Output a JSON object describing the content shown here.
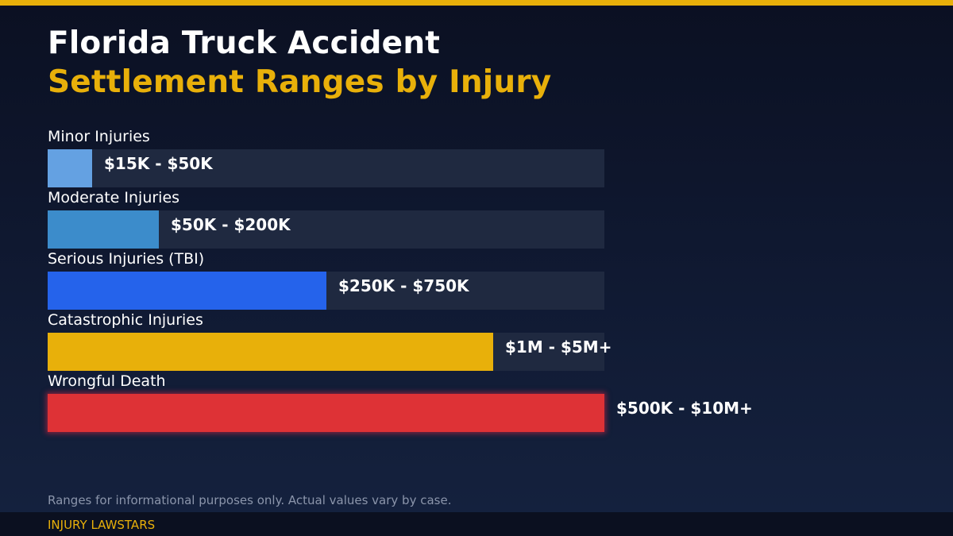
{
  "header": {
    "title_line1": "Florida Truck Accident",
    "title_line2": "Settlement Ranges by Injury"
  },
  "colors": {
    "accent": "#e8b00a",
    "track": "#1f2940",
    "minor": "#64a1e2",
    "moderate": "#3c8ccb",
    "serious": "#2563eb",
    "catastrophic": "#e8b00a",
    "wrongful_death": "#de3236"
  },
  "chart_data": {
    "type": "bar",
    "orientation": "horizontal",
    "title": "Florida Truck Accident Settlement Ranges by Injury",
    "xlabel": "",
    "ylabel": "",
    "grid": false,
    "legend": "none",
    "categories": [
      "Minor Injuries",
      "Moderate Injuries",
      "Serious Injuries (TBI)",
      "Catastrophic Injuries",
      "Wrongful Death"
    ],
    "values": [
      8,
      20,
      50,
      80,
      100
    ],
    "value_unit": "relative bar length (% of track)",
    "data_labels": [
      "$15K - $50K",
      "$50K - $200K",
      "$250K - $750K",
      "$1M - $5M+",
      "$500K - $10M+"
    ],
    "ranges": [
      {
        "min": "$15K",
        "max": "$50K"
      },
      {
        "min": "$50K",
        "max": "$200K"
      },
      {
        "min": "$250K",
        "max": "$750K"
      },
      {
        "min": "$1M",
        "max": "$5M+"
      },
      {
        "min": "$500K",
        "max": "$10M+"
      }
    ],
    "bar_colors": [
      "#64a1e2",
      "#3c8ccb",
      "#2563eb",
      "#e8b00a",
      "#de3236"
    ],
    "xlim": [
      0,
      100
    ]
  },
  "rows": [
    {
      "label": "Minor Injuries",
      "value_label": "$15K - $50K",
      "pct": 8
    },
    {
      "label": "Moderate Injuries",
      "value_label": "$50K - $200K",
      "pct": 20
    },
    {
      "label": "Serious Injuries (TBI)",
      "value_label": "$250K - $750K",
      "pct": 50
    },
    {
      "label": "Catastrophic Injuries",
      "value_label": "$1M - $5M+",
      "pct": 80
    },
    {
      "label": "Wrongful Death",
      "value_label": "$500K - $10M+",
      "pct": 100
    }
  ],
  "footer": {
    "disclaimer": "Ranges for informational purposes only. Actual values vary by case.",
    "brand": "INJURY LAWSTARS"
  }
}
